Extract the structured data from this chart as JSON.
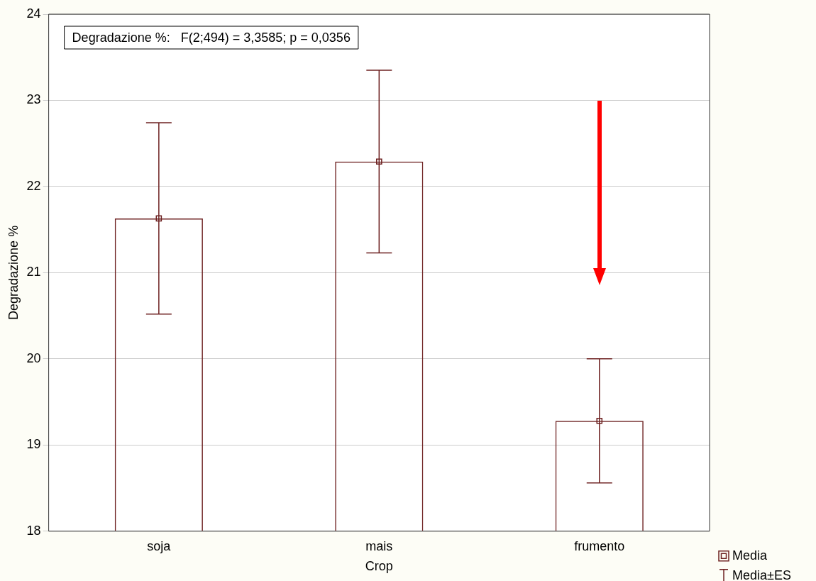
{
  "chart_data": {
    "type": "bar",
    "xlabel": "Crop",
    "ylabel": "Degradazione %",
    "categories": [
      "soja",
      "mais",
      "frumento"
    ],
    "series": [
      {
        "color": "#6e2222",
        "values": [
          21.63,
          22.29,
          19.28
        ],
        "errors": [
          1.11,
          1.06,
          0.72
        ]
      },
      {
        "name": "Media",
        "type": "scatter",
        "x": [
          "soja",
          "mais",
          "frumento"
        ],
        "color": "#6e2222",
        "values": [
          21.63,
          22.29,
          19.28
        ]
      }
    ],
    "ylim": [
      18,
      24
    ],
    "yticks": [
      18,
      19,
      20,
      21,
      22,
      23,
      24
    ],
    "grid": "y",
    "legend": "bottom right",
    "marker": "square",
    "annotations": [
      "Degradazione %:   F(2;494) = 3,3585; p = 0,0356",
      "Media±ES"
    ]
  }
}
